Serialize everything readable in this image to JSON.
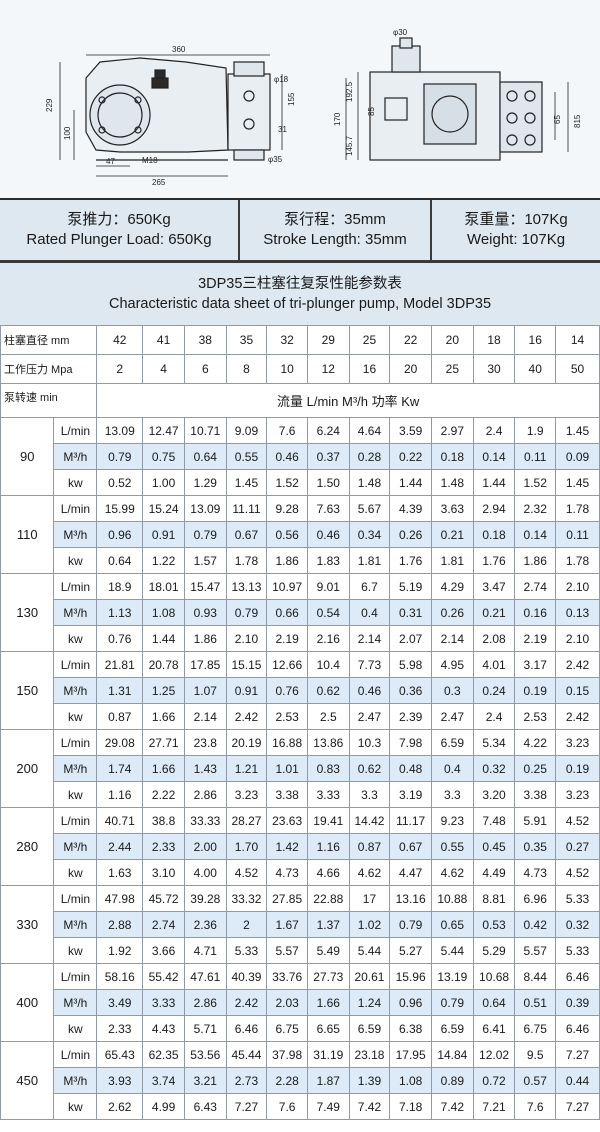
{
  "drawing": {
    "dims": {
      "length_360": "360",
      "phi30": "φ30",
      "d229": "229",
      "d100": "100",
      "d47": "47",
      "m18": "M18",
      "d265": "265",
      "phi18": "φ18",
      "d155": "155",
      "d31": "31",
      "phi35": "φ35",
      "d192_5": "192.5",
      "d85": "85",
      "d170": "170",
      "d145_7": "145.7",
      "d65": "65",
      "d815": "815"
    }
  },
  "specs": {
    "load_cn": "泵推力：650Kg",
    "load_en": "Rated Plunger Load: 650Kg",
    "stroke_cn": "泵行程：35mm",
    "stroke_en": "Stroke Length: 35mm",
    "weight_cn": "泵重量：107Kg",
    "weight_en": "Weight: 107Kg"
  },
  "title": {
    "cn": "3DP35三柱塞往复泵性能参数表",
    "en": "Characteristic data sheet of tri-plunger pump, Model 3DP35"
  },
  "table": {
    "diameter_label": "柱塞直径 mm",
    "diameters": [
      "42",
      "41",
      "38",
      "35",
      "32",
      "29",
      "25",
      "22",
      "20",
      "18",
      "16",
      "14"
    ],
    "pressure_label": "工作压力 Mpa",
    "pressures": [
      "2",
      "4",
      "6",
      "8",
      "10",
      "12",
      "16",
      "20",
      "25",
      "30",
      "40",
      "50"
    ],
    "speed_label": "泵转速 min",
    "flow_header": "流量 L/min  M³/h   功率 Kw",
    "units": [
      "L/min",
      "M³/h",
      "kw"
    ],
    "groups": [
      {
        "speed": "90",
        "lmin": [
          "13.09",
          "12.47",
          "10.71",
          "9.09",
          "7.6",
          "6.24",
          "4.64",
          "3.59",
          "2.97",
          "2.4",
          "1.9",
          "1.45"
        ],
        "m3h": [
          "0.79",
          "0.75",
          "0.64",
          "0.55",
          "0.46",
          "0.37",
          "0.28",
          "0.22",
          "0.18",
          "0.14",
          "0.11",
          "0.09"
        ],
        "kw": [
          "0.52",
          "1.00",
          "1.29",
          "1.45",
          "1.52",
          "1.50",
          "1.48",
          "1.44",
          "1.48",
          "1.44",
          "1.52",
          "1.45"
        ]
      },
      {
        "speed": "110",
        "lmin": [
          "15.99",
          "15.24",
          "13.09",
          "11.11",
          "9.28",
          "7.63",
          "5.67",
          "4.39",
          "3.63",
          "2.94",
          "2.32",
          "1.78"
        ],
        "m3h": [
          "0.96",
          "0.91",
          "0.79",
          "0.67",
          "0.56",
          "0.46",
          "0.34",
          "0.26",
          "0.21",
          "0.18",
          "0.14",
          "0.11"
        ],
        "kw": [
          "0.64",
          "1.22",
          "1.57",
          "1.78",
          "1.86",
          "1.83",
          "1.81",
          "1.76",
          "1.81",
          "1.76",
          "1.86",
          "1.78"
        ]
      },
      {
        "speed": "130",
        "lmin": [
          "18.9",
          "18.01",
          "15.47",
          "13.13",
          "10.97",
          "9.01",
          "6.7",
          "5.19",
          "4.29",
          "3.47",
          "2.74",
          "2.10"
        ],
        "m3h": [
          "1.13",
          "1.08",
          "0.93",
          "0.79",
          "0.66",
          "0.54",
          "0.4",
          "0.31",
          "0.26",
          "0.21",
          "0.16",
          "0.13"
        ],
        "kw": [
          "0.76",
          "1.44",
          "1.86",
          "2.10",
          "2.19",
          "2.16",
          "2.14",
          "2.07",
          "2.14",
          "2.08",
          "2.19",
          "2.10"
        ]
      },
      {
        "speed": "150",
        "lmin": [
          "21.81",
          "20.78",
          "17.85",
          "15.15",
          "12.66",
          "10.4",
          "7.73",
          "5.98",
          "4.95",
          "4.01",
          "3.17",
          "2.42"
        ],
        "m3h": [
          "1.31",
          "1.25",
          "1.07",
          "0.91",
          "0.76",
          "0.62",
          "0.46",
          "0.36",
          "0.3",
          "0.24",
          "0.19",
          "0.15"
        ],
        "kw": [
          "0.87",
          "1.66",
          "2.14",
          "2.42",
          "2.53",
          "2.5",
          "2.47",
          "2.39",
          "2.47",
          "2.4",
          "2.53",
          "2.42"
        ]
      },
      {
        "speed": "200",
        "lmin": [
          "29.08",
          "27.71",
          "23.8",
          "20.19",
          "16.88",
          "13.86",
          "10.3",
          "7.98",
          "6.59",
          "5.34",
          "4.22",
          "3.23"
        ],
        "m3h": [
          "1.74",
          "1.66",
          "1.43",
          "1.21",
          "1.01",
          "0.83",
          "0.62",
          "0.48",
          "0.4",
          "0.32",
          "0.25",
          "0.19"
        ],
        "kw": [
          "1.16",
          "2.22",
          "2.86",
          "3.23",
          "3.38",
          "3.33",
          "3.3",
          "3.19",
          "3.3",
          "3.20",
          "3.38",
          "3.23"
        ]
      },
      {
        "speed": "280",
        "lmin": [
          "40.71",
          "38.8",
          "33.33",
          "28.27",
          "23.63",
          "19.41",
          "14.42",
          "11.17",
          "9.23",
          "7.48",
          "5.91",
          "4.52"
        ],
        "m3h": [
          "2.44",
          "2.33",
          "2.00",
          "1.70",
          "1.42",
          "1.16",
          "0.87",
          "0.67",
          "0.55",
          "0.45",
          "0.35",
          "0.27"
        ],
        "kw": [
          "1.63",
          "3.10",
          "4.00",
          "4.52",
          "4.73",
          "4.66",
          "4.62",
          "4.47",
          "4.62",
          "4.49",
          "4.73",
          "4.52"
        ]
      },
      {
        "speed": "330",
        "lmin": [
          "47.98",
          "45.72",
          "39.28",
          "33.32",
          "27.85",
          "22.88",
          "17",
          "13.16",
          "10.88",
          "8.81",
          "6.96",
          "5.33"
        ],
        "m3h": [
          "2.88",
          "2.74",
          "2.36",
          "2",
          "1.67",
          "1.37",
          "1.02",
          "0.79",
          "0.65",
          "0.53",
          "0.42",
          "0.32"
        ],
        "kw": [
          "1.92",
          "3.66",
          "4.71",
          "5.33",
          "5.57",
          "5.49",
          "5.44",
          "5.27",
          "5.44",
          "5.29",
          "5.57",
          "5.33"
        ]
      },
      {
        "speed": "400",
        "lmin": [
          "58.16",
          "55.42",
          "47.61",
          "40.39",
          "33.76",
          "27.73",
          "20.61",
          "15.96",
          "13.19",
          "10.68",
          "8.44",
          "6.46"
        ],
        "m3h": [
          "3.49",
          "3.33",
          "2.86",
          "2.42",
          "2.03",
          "1.66",
          "1.24",
          "0.96",
          "0.79",
          "0.64",
          "0.51",
          "0.39"
        ],
        "kw": [
          "2.33",
          "4.43",
          "5.71",
          "6.46",
          "6.75",
          "6.65",
          "6.59",
          "6.38",
          "6.59",
          "6.41",
          "6.75",
          "6.46"
        ]
      },
      {
        "speed": "450",
        "lmin": [
          "65.43",
          "62.35",
          "53.56",
          "45.44",
          "37.98",
          "31.19",
          "23.18",
          "17.95",
          "14.84",
          "12.02",
          "9.5",
          "7.27"
        ],
        "m3h": [
          "3.93",
          "3.74",
          "3.21",
          "2.73",
          "2.28",
          "1.87",
          "1.39",
          "1.08",
          "0.89",
          "0.72",
          "0.57",
          "0.44"
        ],
        "kw": [
          "2.62",
          "4.99",
          "6.43",
          "7.27",
          "7.6",
          "7.49",
          "7.42",
          "7.18",
          "7.42",
          "7.21",
          "7.6",
          "7.27"
        ]
      }
    ]
  }
}
